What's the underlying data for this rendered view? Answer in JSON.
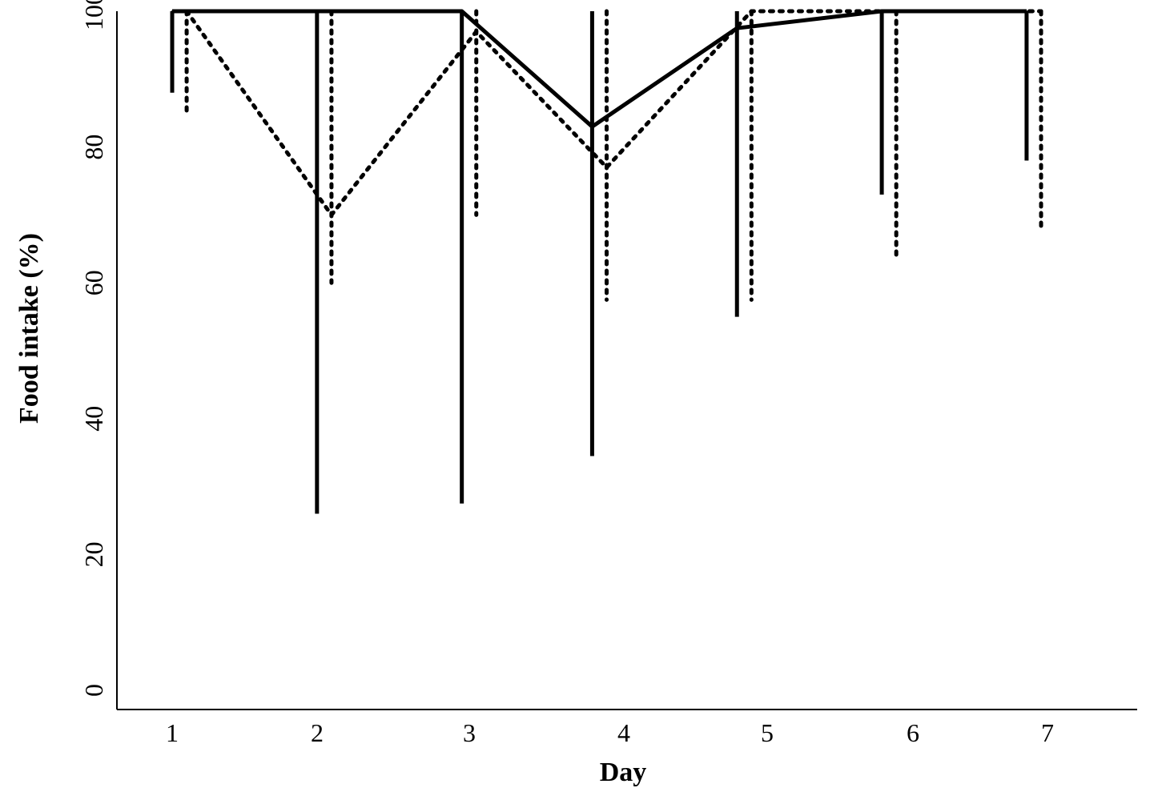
{
  "chart_data": {
    "type": "line",
    "title": "",
    "xlabel": "Day",
    "ylabel": "Food intake (%)",
    "x": [
      1,
      2,
      3,
      4,
      5,
      6,
      7
    ],
    "x_ticks": [
      "1",
      "2",
      "3",
      "4",
      "5",
      "6",
      "7"
    ],
    "y_ticks": [
      "0",
      "20",
      "40",
      "60",
      "80",
      "100"
    ],
    "xlim": [
      0.6,
      7.7
    ],
    "ylim": [
      0,
      100
    ],
    "grid": false,
    "legend": "none",
    "series": [
      {
        "style": "solid",
        "color": "#000000",
        "x": [
          1,
          2,
          3,
          3.9,
          4.9,
          5.9,
          6.9
        ],
        "values": [
          100,
          100,
          100,
          83,
          97.5,
          100,
          100
        ],
        "error_low": [
          88,
          26,
          27.5,
          34.5,
          55,
          73,
          78
        ],
        "error_high": [
          100,
          100,
          100,
          100,
          100,
          100,
          100
        ]
      },
      {
        "style": "dotted",
        "color": "#000000",
        "x": [
          1.1,
          2.1,
          3.1,
          4.0,
          5.0,
          6.0,
          7.0
        ],
        "values": [
          100,
          70,
          97,
          77,
          100,
          100,
          100
        ],
        "error_low": [
          85,
          60,
          70,
          57.5,
          57.5,
          64,
          67.5
        ],
        "error_high": [
          100,
          100,
          100,
          100,
          100,
          100,
          100
        ]
      }
    ]
  }
}
